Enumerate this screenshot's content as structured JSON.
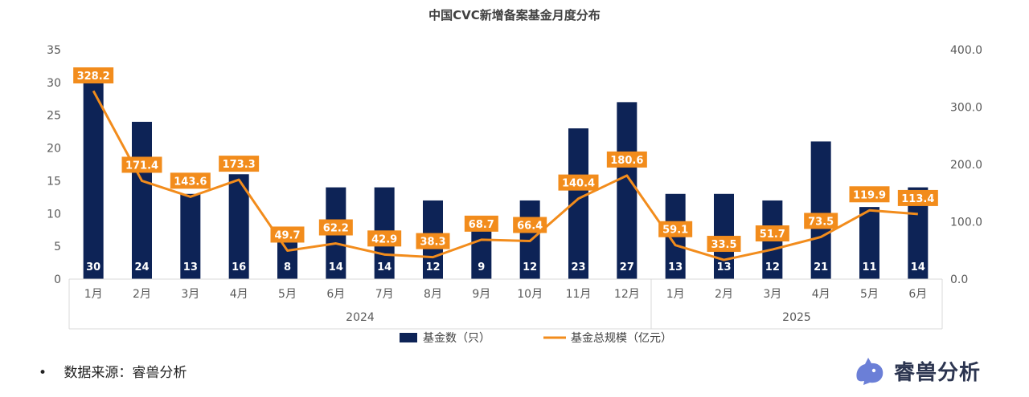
{
  "chart_data": {
    "type": "bar+line",
    "title": "中国CVC新增备案基金月度分布",
    "categories": [
      "1月",
      "2月",
      "3月",
      "4月",
      "5月",
      "6月",
      "7月",
      "8月",
      "9月",
      "10月",
      "11月",
      "12月",
      "1月",
      "2月",
      "3月",
      "4月",
      "5月",
      "6月"
    ],
    "year_groups": [
      {
        "label": "2024",
        "start": 0,
        "end": 11
      },
      {
        "label": "2025",
        "start": 12,
        "end": 17
      }
    ],
    "series": [
      {
        "name": "基金数（只）",
        "type": "bar",
        "axis": "left",
        "color": "#0d2356",
        "values": [
          30,
          24,
          13,
          16,
          8,
          14,
          14,
          12,
          9,
          12,
          23,
          27,
          13,
          13,
          12,
          21,
          11,
          14
        ]
      },
      {
        "name": "基金总规模（亿元）",
        "type": "line",
        "axis": "right",
        "color": "#f28c1c",
        "values": [
          328.2,
          171.4,
          143.6,
          173.3,
          49.7,
          62.2,
          42.9,
          38.3,
          68.7,
          66.4,
          140.4,
          180.6,
          59.1,
          33.5,
          51.7,
          73.5,
          119.9,
          113.4
        ],
        "labels": [
          "328.2",
          "171.4",
          "143.6",
          "173.3",
          "49.7",
          "62.2",
          "42.9",
          "38.3",
          "68.7",
          "66.4",
          "140.4",
          "180.6",
          "59.1",
          "33.5",
          "51.7",
          "73.5",
          "119.9",
          "113.4"
        ]
      }
    ],
    "y_left": {
      "min": 0,
      "max": 35,
      "ticks": [
        "0",
        "5",
        "10",
        "15",
        "20",
        "25",
        "30",
        "35"
      ]
    },
    "y_right": {
      "min": 0,
      "max": 400,
      "ticks": [
        "0.0",
        "100.0",
        "200.0",
        "300.0",
        "400.0"
      ]
    },
    "grid": false,
    "legend_position": "bottom"
  },
  "footer": {
    "bullet": "•",
    "source": "数据来源：睿兽分析",
    "brand": "睿兽分析"
  },
  "colors": {
    "bar": "#0d2356",
    "line": "#f28c1c",
    "logo": "#6b7fd7"
  }
}
